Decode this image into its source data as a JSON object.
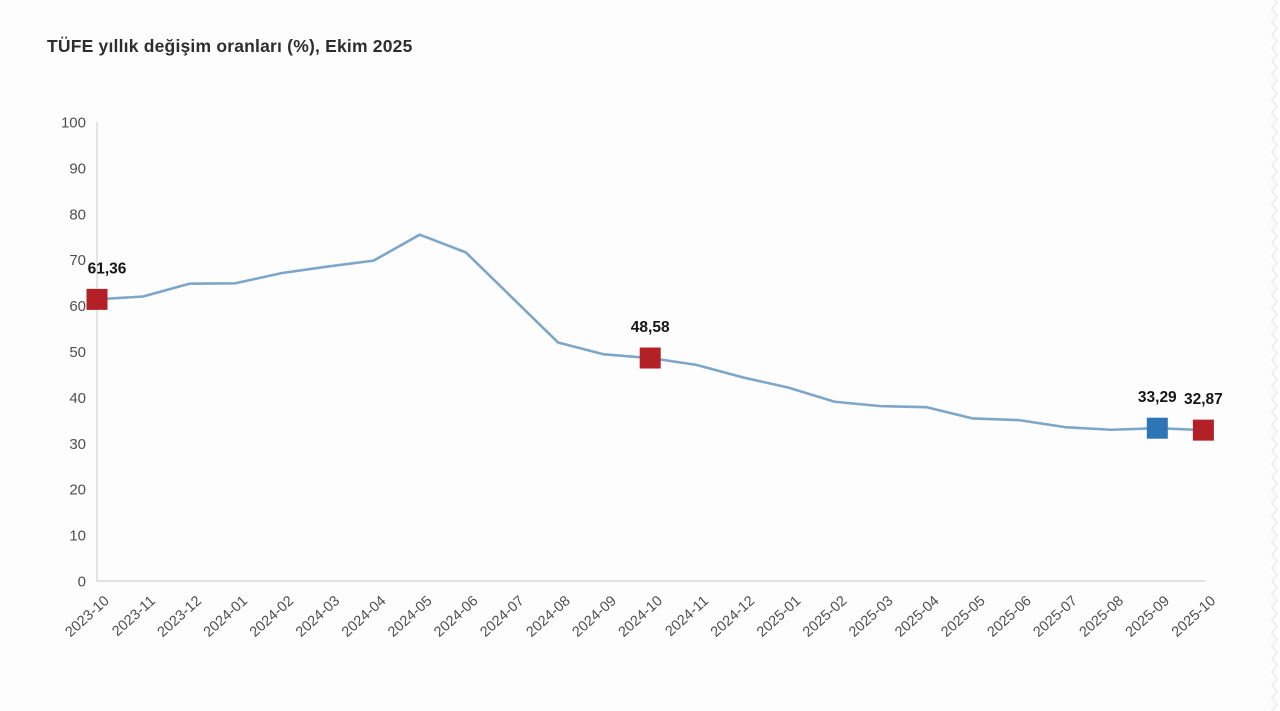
{
  "chart_data": {
    "type": "line",
    "title": "TÜFE yıllık değişim oranları (%), Ekim 2025",
    "categories": [
      "2023-10",
      "2023-11",
      "2023-12",
      "2024-01",
      "2024-02",
      "2024-03",
      "2024-04",
      "2024-05",
      "2024-06",
      "2024-07",
      "2024-08",
      "2024-09",
      "2024-10",
      "2024-11",
      "2024-12",
      "2025-01",
      "2025-02",
      "2025-03",
      "2025-04",
      "2025-05",
      "2025-06",
      "2025-07",
      "2025-08",
      "2025-09",
      "2025-10"
    ],
    "values": [
      61.36,
      61.98,
      64.77,
      64.86,
      67.07,
      68.5,
      69.8,
      75.45,
      71.6,
      61.78,
      51.97,
      49.38,
      48.58,
      47.09,
      44.38,
      42.12,
      39.05,
      38.1,
      37.86,
      35.41,
      35.05,
      33.52,
      32.95,
      33.29,
      32.87
    ],
    "xlabel": "",
    "ylabel": "",
    "ylim": [
      0,
      100
    ],
    "ytick_step": 10,
    "ytick_labels": [
      "0",
      "10",
      "20",
      "30",
      "40",
      "50",
      "60",
      "70",
      "80",
      "90",
      "100"
    ],
    "grid": false,
    "legend": "none",
    "marked_points": [
      {
        "index": 0,
        "label": "61,36",
        "color": "#b32026"
      },
      {
        "index": 12,
        "label": "48,58",
        "color": "#b32026"
      },
      {
        "index": 23,
        "label": "33,29",
        "color": "#2e75b5"
      },
      {
        "index": 24,
        "label": "32,87",
        "color": "#b32026"
      }
    ],
    "colors": {
      "line": "#7da6c8",
      "marker_red": "#b32026",
      "marker_blue": "#2e75b5",
      "axis": "#d9d9d9",
      "tick_text": "#4f4f4f",
      "point_label_text": "#161616",
      "title_text": "#2e2e2e",
      "background": "#fdfdfd",
      "edge_decoration": "#ededed"
    }
  }
}
